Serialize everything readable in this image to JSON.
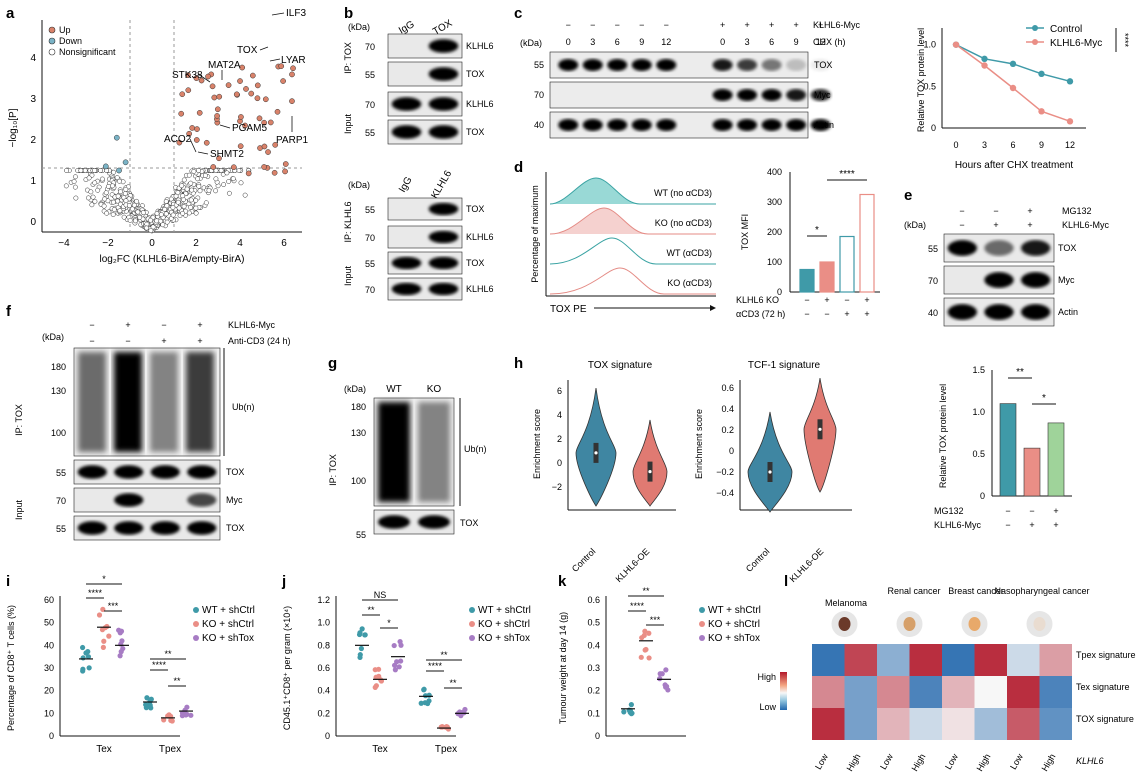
{
  "panels": {
    "a": {
      "label": "a",
      "xlabel": "log₂FC (KLHL6-BirA/empty-BirA)",
      "ylabel": "−log₁₀[P]",
      "legend": [
        "Up",
        "Down",
        "Nonsignificant"
      ],
      "genes": [
        "ILF3",
        "TOX",
        "LYAR",
        "MAT2A",
        "STK38",
        "PGAM5",
        "ACO2",
        "SHMT2",
        "PARP1"
      ],
      "colors": {
        "up": "#d9826a",
        "down": "#7ab3c6",
        "ns": "#ffffff"
      },
      "xticks": [
        "−4",
        "−2",
        "0",
        "2",
        "4",
        "6"
      ],
      "yticks": [
        "0",
        "1",
        "2",
        "3",
        "4"
      ]
    },
    "b": {
      "label": "b",
      "kda": "(kDa)",
      "top_cols": [
        "IgG",
        "TOX"
      ],
      "bottom_cols": [
        "IgG",
        "KLHL6"
      ],
      "ip_top": "IP: TOX",
      "ip_bottom": "IP: KLHL6",
      "input": "Input",
      "top_rows": [
        "KLHL6",
        "TOX",
        "KLHL6",
        "TOX"
      ],
      "top_mw": [
        "70",
        "55",
        "70",
        "55"
      ],
      "bottom_rows": [
        "TOX",
        "KLHL6",
        "TOX",
        "KLHL6"
      ],
      "bottom_mw": [
        "55",
        "70",
        "55",
        "70"
      ]
    },
    "c": {
      "label": "c",
      "kda": "(kDa)",
      "myc_row_label": "KLHL6-Myc",
      "chx_row_label": "CHX (h)",
      "myc_signs": [
        "−",
        "−",
        "−",
        "−",
        "−",
        "+",
        "+",
        "+",
        "+",
        "+"
      ],
      "chx_times": [
        "0",
        "3",
        "6",
        "9",
        "12",
        "0",
        "3",
        "6",
        "9",
        "12"
      ],
      "blot_rows": [
        "TOX",
        "Myc",
        "Actin"
      ],
      "blot_mw": [
        "55",
        "70",
        "40"
      ],
      "line_ylabel": "Relative TOX protein level",
      "line_xlabel": "Hours after CHX treatment",
      "significance": "****"
    },
    "d": {
      "label": "d",
      "ylabel": "Percentage of maximum",
      "xlabel": "TOX PE",
      "traces": [
        "WT (no αCD3)",
        "KO (no αCD3)",
        "WT (αCD3)",
        "KO (αCD3)"
      ],
      "bar_ylabel": "TOX MFI",
      "bar_yticks": [
        "0",
        "100",
        "200",
        "300",
        "400"
      ],
      "row1_label": "KLHL6 KO",
      "row1": [
        "−",
        "+",
        "−",
        "+"
      ],
      "row2_label": "αCD3 (72 h)",
      "row2": [
        "−",
        "−",
        "+",
        "+"
      ],
      "sig": [
        "*",
        "****"
      ]
    },
    "e": {
      "label": "e",
      "kda": "(kDa)",
      "mg132_label": "MG132",
      "myc_label": "KLHL6-Myc",
      "mg132": [
        "−",
        "−",
        "+"
      ],
      "myc": [
        "−",
        "+",
        "+"
      ],
      "blot_rows": [
        "TOX",
        "Myc",
        "Actin"
      ],
      "blot_mw": [
        "55",
        "70",
        "40"
      ],
      "bar_ylabel": "Relative TOX protein level",
      "bar_yticks": [
        "0",
        "0.5",
        "1.0",
        "1.5"
      ],
      "sig": [
        "**",
        "*"
      ]
    },
    "f": {
      "label": "f",
      "kda": "(kDa)",
      "myc_label": "KLHL6-Myc",
      "cd3_label": "Anti-CD3 (24 h)",
      "myc": [
        "−",
        "+",
        "−",
        "+"
      ],
      "cd3": [
        "−",
        "−",
        "+",
        "+"
      ],
      "mw": [
        "180",
        "130",
        "100",
        "55",
        "70",
        "55"
      ],
      "rows": [
        "Ub(n)",
        "TOX",
        "Myc",
        "TOX"
      ],
      "ip": "IP: TOX",
      "input": "Input"
    },
    "g": {
      "label": "g",
      "kda": "(kDa)",
      "cols": [
        "WT",
        "KO"
      ],
      "mw": [
        "180",
        "130",
        "100",
        "55"
      ],
      "rows": [
        "Ub(n)",
        "TOX"
      ],
      "ip": "IP: TOX"
    },
    "h": {
      "label": "h",
      "titles": [
        "TOX signature",
        "TCF-1 signature"
      ],
      "ylabel": "Enrichment score",
      "groups": [
        "Control",
        "KLHL6-OE"
      ],
      "left_yticks": [
        "−2",
        "0",
        "2",
        "4",
        "6"
      ],
      "right_yticks": [
        "−0.4",
        "−0.2",
        "0",
        "0.2",
        "0.4",
        "0.6"
      ],
      "colors": {
        "control": "#3f86a2",
        "oe": "#e07a72"
      }
    },
    "i": {
      "label": "i",
      "ylabel": "Percentage of CD8⁺ T cells (%)",
      "yticks": [
        "0",
        "10",
        "20",
        "30",
        "40",
        "50",
        "60"
      ],
      "groups": [
        "Tex",
        "Tpex"
      ],
      "legend": [
        "WT + shCtrl",
        "KO + shCtrl",
        "KO + shTox"
      ],
      "sig": [
        "*",
        "****",
        "***",
        "**",
        "****",
        "**"
      ]
    },
    "j": {
      "label": "j",
      "ylabel": "CD45.1⁺CD8⁺ per gram (×10⁴)",
      "yticks": [
        "0",
        "0.2",
        "0.4",
        "0.6",
        "0.8",
        "1.0",
        "1.2"
      ],
      "groups": [
        "Tex",
        "Tpex"
      ],
      "legend": [
        "WT + shCtrl",
        "KO + shCtrl",
        "KO + shTox"
      ],
      "sig": [
        "NS",
        "**",
        "*",
        "**",
        "****",
        "**"
      ]
    },
    "k": {
      "label": "k",
      "ylabel": "Tumour weight at day 14 (g)",
      "yticks": [
        "0",
        "0.1",
        "0.2",
        "0.3",
        "0.4",
        "0.5",
        "0.6"
      ],
      "legend": [
        "WT + shCtrl",
        "KO + shCtrl",
        "KO + shTox"
      ],
      "sig": [
        "**",
        "****",
        "***"
      ]
    },
    "l": {
      "label": "l",
      "cancers": [
        "Melanoma",
        "Renal cancer",
        "Breast cancer",
        "Nasopharyngeal cancer"
      ],
      "rows": [
        "Tpex signature",
        "Tex signature",
        "TOX signature"
      ],
      "cols": [
        "Low",
        "High",
        "Low",
        "High",
        "Low",
        "High",
        "Low",
        "High"
      ],
      "gene": "KLHL6",
      "scale": [
        "High",
        "Low"
      ]
    },
    "series_colors": {
      "wt": "#3f9aa8",
      "ko": "#ea8e86",
      "sh": "#a77cc4"
    }
  },
  "chart_data": [
    {
      "type": "line",
      "panel": "c",
      "x": [
        0,
        3,
        6,
        9,
        12
      ],
      "series": [
        {
          "name": "Control",
          "values": [
            1.0,
            0.83,
            0.77,
            0.65,
            0.56
          ]
        },
        {
          "name": "KLHL6-Myc",
          "values": [
            1.0,
            0.75,
            0.48,
            0.2,
            0.08
          ]
        }
      ],
      "xlabel": "Hours after CHX treatment",
      "ylabel": "Relative TOX protein level",
      "xticks": [
        0,
        3,
        6,
        9,
        12
      ],
      "yticks": [
        0,
        0.5,
        1.0
      ],
      "ylim": [
        0,
        1.2
      ]
    },
    {
      "type": "bar",
      "panel": "d",
      "categories": [
        "KO− αCD3−",
        "KO+ αCD3−",
        "KO− αCD3+",
        "KO+ αCD3+"
      ],
      "values": [
        75,
        100,
        185,
        325
      ],
      "ylabel": "TOX MFI",
      "ylim": [
        0,
        400
      ]
    },
    {
      "type": "bar",
      "panel": "e",
      "categories": [
        "Myc− MG132−",
        "Myc+ MG132−",
        "Myc+ MG132+"
      ],
      "values": [
        1.1,
        0.57,
        0.87
      ],
      "ylabel": "Relative TOX protein level",
      "ylim": [
        0,
        1.5
      ]
    },
    {
      "type": "scatter",
      "panel": "i",
      "categories": [
        "Tex-term",
        "Tpex"
      ],
      "series": [
        {
          "name": "WT + shCtrl",
          "values": [
            34,
            15
          ]
        },
        {
          "name": "KO + shCtrl",
          "values": [
            48,
            8
          ]
        },
        {
          "name": "KO + shTox",
          "values": [
            40,
            11
          ]
        }
      ],
      "ylim": [
        0,
        60
      ]
    },
    {
      "type": "scatter",
      "panel": "j",
      "categories": [
        "Tex-term",
        "Tpex"
      ],
      "series": [
        {
          "name": "WT + shCtrl",
          "values": [
            0.8,
            0.35
          ]
        },
        {
          "name": "KO + shCtrl",
          "values": [
            0.5,
            0.07
          ]
        },
        {
          "name": "KO + shTox",
          "values": [
            0.7,
            0.2
          ]
        }
      ],
      "ylim": [
        0,
        1.2
      ]
    },
    {
      "type": "scatter",
      "panel": "k",
      "categories": [
        "WT + shCtrl",
        "KO + shCtrl",
        "KO + shTox"
      ],
      "values": [
        0.12,
        0.42,
        0.25
      ],
      "ylabel": "Tumour weight at day 14 (g)",
      "ylim": [
        0,
        0.6
      ]
    },
    {
      "type": "heatmap",
      "panel": "l",
      "rows": [
        "Tpex signature",
        "Tex signature",
        "TOX signature"
      ],
      "cols": [
        "Melanoma Low",
        "Melanoma High",
        "Renal Low",
        "Renal High",
        "Breast Low",
        "Breast High",
        "Nasopharyngeal Low",
        "Nasopharyngeal High"
      ],
      "values": [
        [
          -0.9,
          0.8,
          -0.5,
          0.9,
          -0.9,
          0.9,
          -0.2,
          0.4
        ],
        [
          0.5,
          -0.6,
          0.5,
          -0.8,
          0.3,
          0.0,
          0.9,
          -0.8
        ],
        [
          0.9,
          -0.6,
          0.3,
          -0.2,
          0.1,
          -0.4,
          0.7,
          -0.7
        ]
      ],
      "scale": [
        "Low",
        "High"
      ]
    }
  ]
}
